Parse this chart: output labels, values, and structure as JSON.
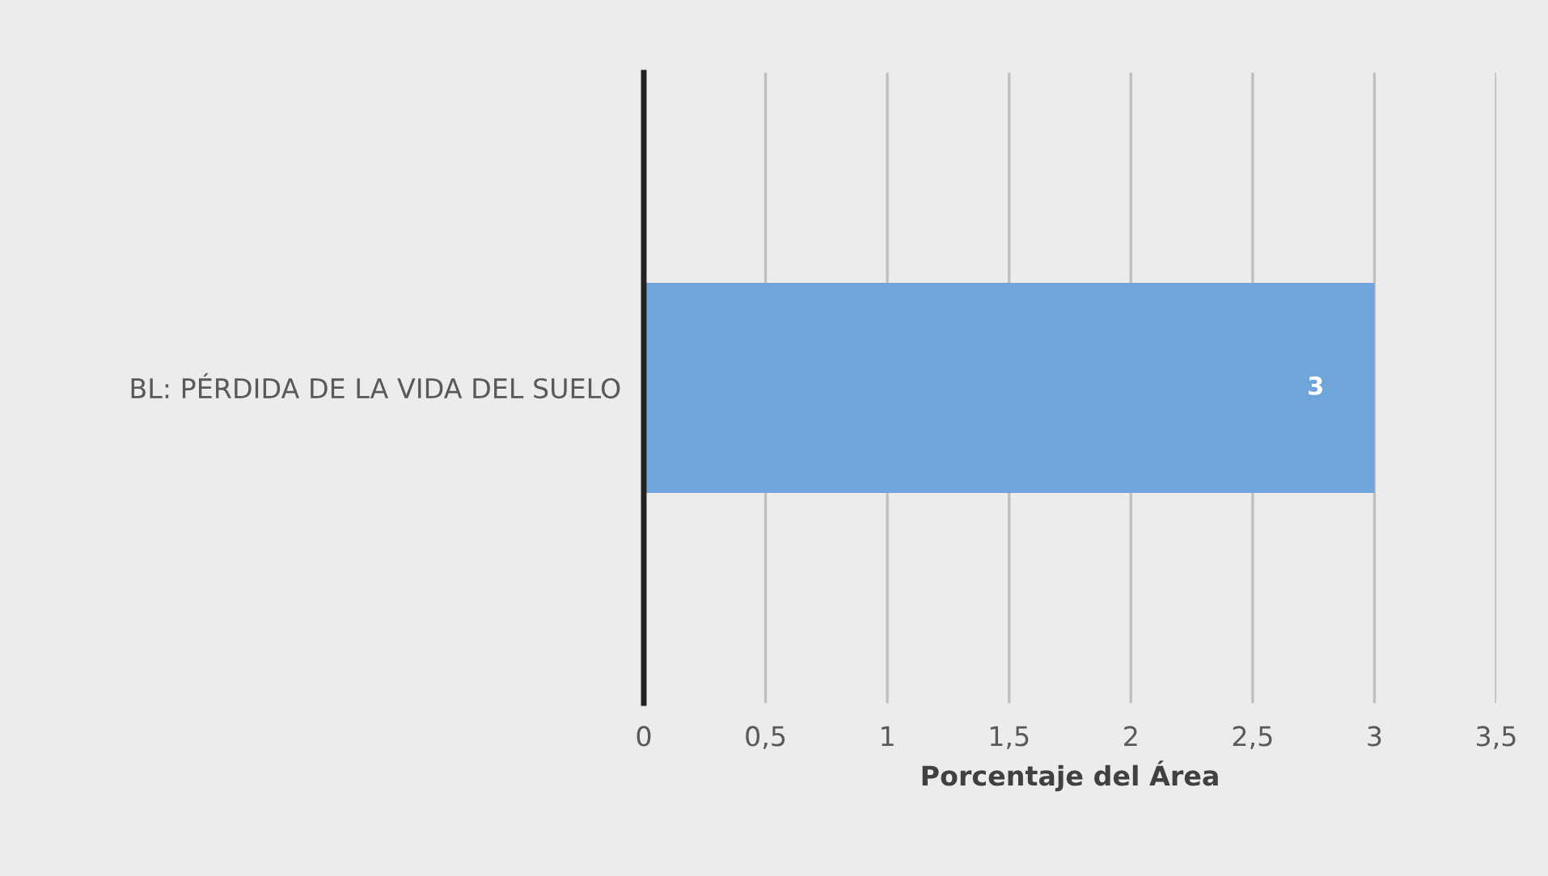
{
  "chart_data": {
    "type": "bar",
    "orientation": "horizontal",
    "categories": [
      "BL: PÉRDIDA DE LA VIDA DEL SUELO"
    ],
    "series": [
      {
        "color": "#6fa5da",
        "values": [
          3
        ]
      }
    ],
    "xlabel": "Porcentaje del Área",
    "xlim": [
      0,
      3.5
    ],
    "xticks": [
      0,
      {
        "value": 0.5,
        "label": "0,5"
      },
      1,
      {
        "value": 1.5,
        "label": "1,5"
      },
      2,
      {
        "value": 2.5,
        "label": "2,5"
      },
      3,
      {
        "value": 3.5,
        "label": "3,5"
      }
    ],
    "grid": "x",
    "data_labels": true,
    "legend": false
  }
}
